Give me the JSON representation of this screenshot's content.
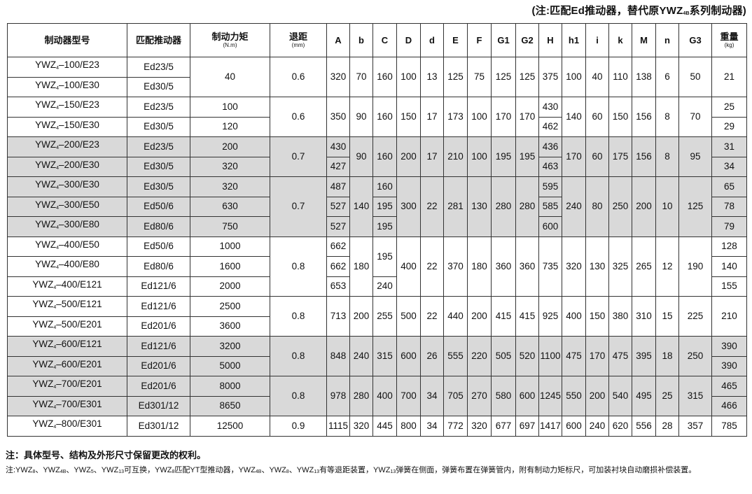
{
  "top_note": {
    "pre": "(注:匹配Ed推动器，替代原YWZ",
    "sub": "4B",
    "post": "系列制动器)"
  },
  "table": {
    "headers": [
      {
        "key": "model",
        "label": "制动器型号"
      },
      {
        "key": "actuator",
        "label": "匹配推动器"
      },
      {
        "key": "torque",
        "label": "制动力矩",
        "unit": "(N.m)"
      },
      {
        "key": "gap",
        "label": "退距",
        "unit": "(mm)"
      },
      {
        "key": "A",
        "label": "A"
      },
      {
        "key": "b",
        "label": "b"
      },
      {
        "key": "C",
        "label": "C"
      },
      {
        "key": "D",
        "label": "D"
      },
      {
        "key": "d",
        "label": "d"
      },
      {
        "key": "E",
        "label": "E"
      },
      {
        "key": "F",
        "label": "F"
      },
      {
        "key": "G1",
        "label": "G1"
      },
      {
        "key": "G2",
        "label": "G2"
      },
      {
        "key": "H",
        "label": "H"
      },
      {
        "key": "h1",
        "label": "h1"
      },
      {
        "key": "i",
        "label": "i"
      },
      {
        "key": "k",
        "label": "k"
      },
      {
        "key": "M",
        "label": "M"
      },
      {
        "key": "n",
        "label": "n"
      },
      {
        "key": "G3",
        "label": "G3"
      },
      {
        "key": "weight",
        "label": "重量",
        "unit": "(kg)"
      }
    ],
    "groups": [
      {
        "shaded": false,
        "rows": 2,
        "cols": {
          "model": [
            {
              "base": "YWZ",
              "sub": "4",
              "suffix": "–100/E23"
            },
            {
              "base": "YWZ",
              "sub": "4",
              "suffix": "–100/E30"
            }
          ],
          "actuator": [
            "Ed23/5",
            "Ed30/5"
          ],
          "torque": "40",
          "gap": "0.6",
          "A": "320",
          "b": "70",
          "C": "160",
          "D": "100",
          "d": "13",
          "E": "125",
          "F": "75",
          "G1": "125",
          "G2": "125",
          "H": "375",
          "h1": "100",
          "i": "40",
          "k": "110",
          "M": "138",
          "n": "6",
          "G3": "50",
          "weight": "21"
        }
      },
      {
        "shaded": false,
        "rows": 2,
        "cols": {
          "model": [
            {
              "base": "YWZ",
              "sub": "4",
              "suffix": "–150/E23"
            },
            {
              "base": "YWZ",
              "sub": "4",
              "suffix": "–150/E30"
            }
          ],
          "actuator": [
            "Ed23/5",
            "Ed30/5"
          ],
          "torque": [
            "100",
            "120"
          ],
          "gap": "0.6",
          "A": "350",
          "b": "90",
          "C": "160",
          "D": "150",
          "d": "17",
          "E": "173",
          "F": "100",
          "G1": "170",
          "G2": "170",
          "H": [
            "430",
            "462"
          ],
          "h1": "140",
          "i": "60",
          "k": "150",
          "M": "156",
          "n": "8",
          "G3": "70",
          "weight": [
            "25",
            "29"
          ]
        }
      },
      {
        "shaded": true,
        "rows": 2,
        "cols": {
          "model": [
            {
              "base": "YWZ",
              "sub": "4",
              "suffix": "–200/E23"
            },
            {
              "base": "YWZ",
              "sub": "4",
              "suffix": "–200/E30"
            }
          ],
          "actuator": [
            "Ed23/5",
            "Ed30/5"
          ],
          "torque": [
            "200",
            "320"
          ],
          "gap": "0.7",
          "A": [
            "430",
            "427"
          ],
          "b": "90",
          "C": "160",
          "D": "200",
          "d": "17",
          "E": "210",
          "F": "100",
          "G1": "195",
          "G2": "195",
          "H": [
            "436",
            "463"
          ],
          "h1": "170",
          "i": "60",
          "k": "175",
          "M": "156",
          "n": "8",
          "G3": "95",
          "weight": [
            "31",
            "34"
          ]
        }
      },
      {
        "shaded": true,
        "rows": 3,
        "cols": {
          "model": [
            {
              "base": "YWZ",
              "sub": "4",
              "suffix": "–300/E30"
            },
            {
              "base": "YWZ",
              "sub": "4",
              "suffix": "–300/E50"
            },
            {
              "base": "YWZ",
              "sub": "4",
              "suffix": "–300/E80"
            }
          ],
          "actuator": [
            "Ed30/5",
            "Ed50/6",
            "Ed80/6"
          ],
          "torque": [
            "320",
            "630",
            "750"
          ],
          "gap": "0.7",
          "A": [
            "487",
            "527",
            "527"
          ],
          "b": "140",
          "C": [
            "160",
            "195",
            "195"
          ],
          "D": "300",
          "d": "22",
          "E": "281",
          "F": "130",
          "G1": "280",
          "G2": "280",
          "H": [
            "595",
            "585",
            "600"
          ],
          "h1": "240",
          "i": "80",
          "k": "250",
          "M": "200",
          "n": "10",
          "G3": "125",
          "weight": [
            "65",
            "78",
            "79"
          ]
        }
      },
      {
        "shaded": false,
        "rows": 3,
        "cols": {
          "model": [
            {
              "base": "YWZ",
              "sub": "4",
              "suffix": "–400/E50"
            },
            {
              "base": "YWZ",
              "sub": "4",
              "suffix": "–400/E80"
            },
            {
              "base": "YWZ",
              "sub": "4",
              "suffix": "–400/E121"
            }
          ],
          "actuator": [
            "Ed50/6",
            "Ed80/6",
            "Ed121/6"
          ],
          "torque": [
            "1000",
            "1600",
            "2000"
          ],
          "gap": "0.8",
          "A": [
            "662",
            "662",
            "653"
          ],
          "b": "180",
          "C": [
            {
              "v": "195",
              "span": 2
            },
            null,
            "240"
          ],
          "D": "400",
          "d": "22",
          "E": "370",
          "F": "180",
          "G1": "360",
          "G2": "360",
          "H": "735",
          "h1": "320",
          "i": "130",
          "k": "325",
          "M": "265",
          "n": "12",
          "G3": "190",
          "weight": [
            "128",
            "140",
            "155"
          ]
        }
      },
      {
        "shaded": false,
        "rows": 2,
        "cols": {
          "model": [
            {
              "base": "YWZ",
              "sub": "4",
              "suffix": "–500/E121"
            },
            {
              "base": "YWZ",
              "sub": "4",
              "suffix": "–500/E201"
            }
          ],
          "actuator": [
            "Ed121/6",
            "Ed201/6"
          ],
          "torque": [
            "2500",
            "3600"
          ],
          "gap": "0.8",
          "A": "713",
          "b": "200",
          "C": "255",
          "D": "500",
          "d": "22",
          "E": "440",
          "F": "200",
          "G1": "415",
          "G2": "415",
          "H": "925",
          "h1": "400",
          "i": "150",
          "k": "380",
          "M": "310",
          "n": "15",
          "G3": "225",
          "weight": "210"
        }
      },
      {
        "shaded": true,
        "rows": 2,
        "cols": {
          "model": [
            {
              "base": "YWZ",
              "sub": "4",
              "suffix": "–600/E121"
            },
            {
              "base": "YWZ",
              "sub": "4",
              "suffix": "–600/E201"
            }
          ],
          "actuator": [
            "Ed121/6",
            "Ed201/6"
          ],
          "torque": [
            "3200",
            "5000"
          ],
          "gap": "0.8",
          "A": "848",
          "b": "240",
          "C": "315",
          "D": "600",
          "d": "26",
          "E": "555",
          "F": "220",
          "G1": "505",
          "G2": "520",
          "H": "1100",
          "h1": "475",
          "i": "170",
          "k": "475",
          "M": "395",
          "n": "18",
          "G3": "250",
          "weight": [
            "390",
            "390"
          ]
        }
      },
      {
        "shaded": true,
        "rows": 2,
        "cols": {
          "model": [
            {
              "base": "YWZ",
              "sub": "4",
              "suffix": "–700/E201"
            },
            {
              "base": "YWZ",
              "sub": "4",
              "suffix": "–700/E301"
            }
          ],
          "actuator": [
            "Ed201/6",
            "Ed301/12"
          ],
          "torque": [
            "8000",
            "8650"
          ],
          "gap": "0.8",
          "A": "978",
          "b": "280",
          "C": "400",
          "D": "700",
          "d": "34",
          "E": "705",
          "F": "270",
          "G1": "580",
          "G2": "600",
          "H": "1245",
          "h1": "550",
          "i": "200",
          "k": "540",
          "M": "495",
          "n": "25",
          "G3": "315",
          "weight": [
            "465",
            "466"
          ]
        }
      },
      {
        "shaded": false,
        "rows": 1,
        "cols": {
          "model": [
            {
              "base": "YWZ",
              "sub": "4",
              "suffix": "–800/E301"
            }
          ],
          "actuator": [
            "Ed301/12"
          ],
          "torque": "12500",
          "gap": "0.9",
          "A": "1115",
          "b": "320",
          "C": "445",
          "D": "800",
          "d": "34",
          "E": "772",
          "F": "320",
          "G1": "677",
          "G2": "697",
          "H": "1417",
          "h1": "600",
          "i": "240",
          "k": "620",
          "M": "556",
          "n": "28",
          "G3": "357",
          "weight": "785"
        }
      }
    ]
  },
  "notes": {
    "note1": "注：具体型号、结构及外形尺寸保留更改的权利。",
    "note2": [
      {
        "t": "注:YWZ"
      },
      {
        "s": "8"
      },
      {
        "t": "、YWZ"
      },
      {
        "s": "4B"
      },
      {
        "t": "、YWZ"
      },
      {
        "s": "5"
      },
      {
        "t": "、YWZ"
      },
      {
        "s": "13"
      },
      {
        "t": "可互换，YWZ"
      },
      {
        "s": "8"
      },
      {
        "t": "匹配YT型推动器，YWZ"
      },
      {
        "s": "4B"
      },
      {
        "t": "、YWZ"
      },
      {
        "s": "8"
      },
      {
        "t": "、YWZ"
      },
      {
        "s": "13"
      },
      {
        "t": "有等退距装置，YWZ"
      },
      {
        "s": "13"
      },
      {
        "t": "弹簧在侧面，弹簧布置在弹簧管内，附有制动力矩标尺，可加装衬块自动磨损补偿装置。"
      }
    ]
  }
}
